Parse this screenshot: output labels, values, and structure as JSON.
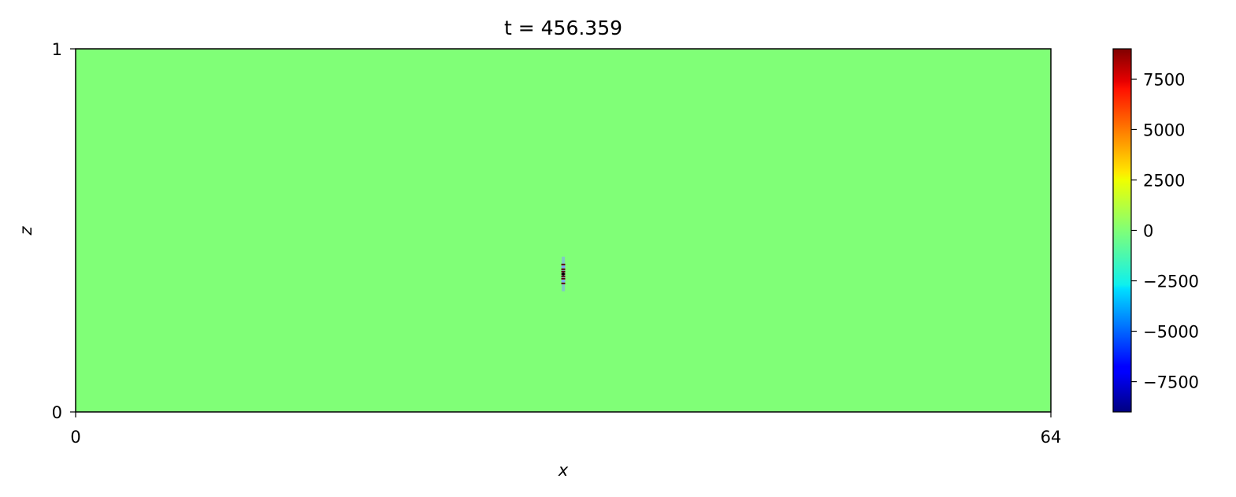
{
  "chart_data": {
    "type": "heatmap",
    "title": "t = 456.359",
    "xlabel": "x",
    "ylabel": "z",
    "xlim": [
      0,
      64
    ],
    "ylim": [
      0,
      1
    ],
    "x_ticks": [
      "0",
      "64"
    ],
    "y_ticks": [
      "0",
      "1"
    ],
    "colormap": "jet",
    "background_value": 0,
    "colorbar": {
      "min": -9000,
      "max": 9000,
      "ticks": [
        7500,
        5000,
        2500,
        0,
        -2500,
        -5000,
        -7500
      ],
      "tick_labels": [
        "7500",
        "5000",
        "2500",
        "0",
        "−2500",
        "−5000",
        "−7500"
      ]
    },
    "features": [
      {
        "name": "localized-oscillation",
        "x": 32,
        "z": 0.38,
        "peak_value": 9000
      }
    ],
    "grid": false,
    "colors": {
      "field_background": "#80ff77",
      "spot_dark": "#5a0010",
      "spot_light": "#7fa0ff"
    }
  }
}
